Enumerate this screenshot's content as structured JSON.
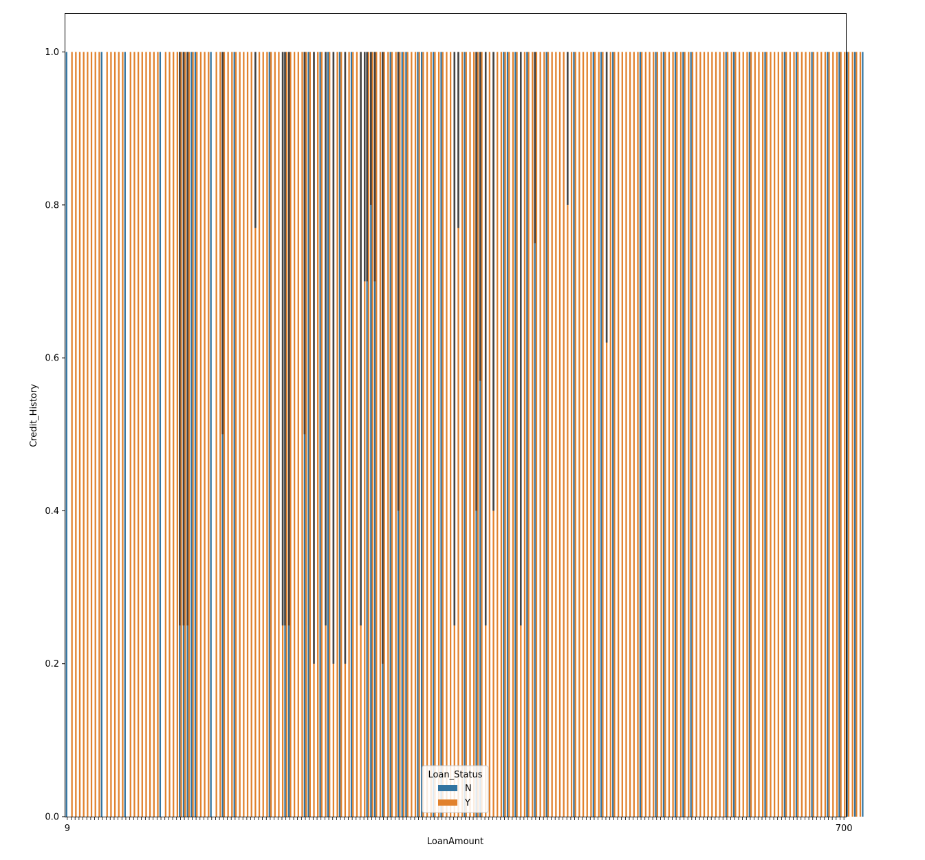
{
  "chart_data": {
    "type": "bar",
    "title": "",
    "xlabel": "LoanAmount",
    "ylabel": "Credit_History",
    "ylim": [
      0,
      1.05
    ],
    "yticks": [
      "0.0",
      "0.2",
      "0.4",
      "0.6",
      "0.8",
      "1.0"
    ],
    "ytick_values": [
      0,
      0.2,
      0.4,
      0.6,
      0.8,
      1.0
    ],
    "first_category_label": "9",
    "last_category_label": "700",
    "n_categories": 200,
    "legend": {
      "title": "Loan_Status",
      "placement": "lower-center"
    },
    "series": [
      {
        "name": "N",
        "color": "#3274a1",
        "values": [
          1,
          null,
          null,
          null,
          null,
          null,
          null,
          null,
          null,
          1,
          null,
          null,
          null,
          null,
          null,
          1,
          null,
          null,
          null,
          null,
          null,
          null,
          null,
          null,
          1,
          null,
          null,
          null,
          null,
          1,
          1,
          1,
          1,
          1,
          null,
          null,
          null,
          1,
          null,
          null,
          1,
          null,
          null,
          1,
          null,
          null,
          null,
          null,
          null,
          null,
          null,
          null,
          1,
          null,
          null,
          null,
          1,
          1,
          null,
          null,
          null,
          1,
          1,
          null,
          null,
          1,
          null,
          1,
          null,
          null,
          1,
          null,
          null,
          1,
          null,
          null,
          null,
          1,
          1,
          1,
          null,
          1,
          null,
          1,
          null,
          1,
          1,
          1,
          null,
          null,
          1,
          1,
          null,
          null,
          1,
          null,
          1,
          null,
          null,
          null,
          null,
          null,
          1,
          null,
          null,
          1,
          1,
          null,
          null,
          null,
          null,
          null,
          1,
          1,
          null,
          1,
          null,
          null,
          1,
          null,
          1,
          null,
          null,
          1,
          null,
          null,
          null,
          null,
          null,
          null,
          1,
          null,
          null,
          null,
          null,
          1,
          null,
          1,
          null,
          null,
          1,
          null,
          null,
          null,
          null,
          null,
          null,
          1,
          null,
          null,
          null,
          1,
          null,
          1,
          null,
          null,
          1,
          null,
          1,
          null,
          1,
          null,
          null,
          null,
          null,
          null,
          null,
          null,
          null,
          1,
          null,
          1,
          null,
          null,
          null,
          1,
          null,
          null,
          null,
          1,
          null,
          null,
          null,
          null,
          1,
          null,
          null,
          1,
          null,
          null,
          null,
          1,
          null,
          null,
          null,
          1,
          null,
          null,
          1,
          null,
          1,
          null,
          1,
          null,
          1
        ]
      },
      {
        "name": "Y",
        "color": "#e1812c",
        "values": [
          null,
          1,
          1,
          1,
          1,
          1,
          1,
          1,
          1,
          null,
          1,
          1,
          1,
          1,
          1,
          null,
          1,
          1,
          1,
          1,
          1,
          1,
          1,
          1,
          null,
          1,
          1,
          1,
          1,
          1,
          1,
          1,
          1,
          1,
          1,
          1,
          1,
          null,
          1,
          1,
          1,
          1,
          1,
          1,
          1,
          1,
          1,
          1,
          1,
          1,
          1,
          1,
          1,
          1,
          1,
          1,
          1,
          1,
          1,
          1,
          1,
          1,
          1,
          1,
          1,
          1,
          1,
          1,
          1,
          1,
          1,
          1,
          1,
          1,
          1,
          1,
          1,
          1,
          1,
          1,
          1,
          1,
          1,
          1,
          1,
          1,
          1,
          1,
          1,
          1,
          1,
          1,
          1,
          1,
          1,
          1,
          1,
          1,
          1,
          1,
          1,
          1,
          1,
          1,
          1,
          1,
          1,
          1,
          1,
          1,
          1,
          1,
          1,
          1,
          1,
          1,
          1,
          1,
          1,
          1,
          1,
          1,
          1,
          1,
          1,
          1,
          1,
          1,
          1,
          1,
          1,
          1,
          1,
          1,
          1,
          1,
          1,
          1,
          1,
          1,
          1,
          1,
          1,
          1,
          1,
          1,
          1,
          1,
          1,
          1,
          1,
          1,
          1,
          1,
          1,
          1,
          1,
          1,
          1,
          1,
          1,
          1,
          1,
          1,
          1,
          1,
          1,
          1,
          1,
          1,
          1,
          1,
          1,
          1,
          1,
          1,
          1,
          1,
          1,
          1,
          1,
          1,
          1,
          1,
          1,
          1,
          1,
          1,
          1,
          1,
          1,
          1,
          1,
          1,
          1,
          1,
          1,
          1,
          1,
          1,
          1,
          1,
          1,
          1
        ]
      }
    ],
    "error_bars": {
      "color": "#424242",
      "low_values": [
        null,
        null,
        null,
        null,
        null,
        null,
        null,
        null,
        null,
        null,
        null,
        null,
        null,
        null,
        null,
        null,
        null,
        null,
        null,
        null,
        null,
        null,
        null,
        null,
        null,
        null,
        null,
        null,
        null,
        0.25,
        0.25,
        0.25,
        null,
        null,
        null,
        null,
        null,
        null,
        null,
        null,
        0.5,
        null,
        null,
        null,
        null,
        null,
        null,
        null,
        0.77,
        null,
        null,
        null,
        null,
        null,
        null,
        0.25,
        0.25,
        0.25,
        null,
        null,
        null,
        0.5,
        null,
        0.2,
        null,
        null,
        0.25,
        null,
        0.2,
        null,
        null,
        0.2,
        null,
        null,
        null,
        0.25,
        0.7,
        0.7,
        0.8,
        0.7,
        null,
        0.2,
        null,
        null,
        null,
        0.4,
        null,
        null,
        null,
        null,
        null,
        null,
        null,
        null,
        null,
        null,
        null,
        null,
        null,
        0.25,
        0.77,
        null,
        null,
        null,
        null,
        0.4,
        0.57,
        0.25,
        null,
        0.4,
        null,
        null,
        null,
        null,
        null,
        null,
        0.25,
        null,
        null,
        null,
        0.75,
        null,
        null,
        null,
        null,
        null,
        null,
        null,
        0.8,
        null,
        null,
        null,
        null,
        null,
        null,
        null,
        null,
        null,
        0.62,
        null,
        null,
        null,
        null,
        null,
        null,
        null,
        null,
        null,
        null,
        null,
        null,
        null,
        null,
        null,
        null,
        null,
        null,
        null,
        null,
        null,
        null,
        null,
        null,
        null,
        null,
        null,
        null,
        null,
        null,
        null,
        null,
        null,
        null,
        null,
        null,
        null,
        null,
        null,
        null,
        null,
        null,
        null,
        null,
        null,
        null,
        null,
        null,
        null,
        null,
        null,
        null,
        null,
        null,
        null,
        null,
        null,
        null,
        null,
        null,
        null,
        null,
        null,
        null,
        null
      ]
    }
  }
}
